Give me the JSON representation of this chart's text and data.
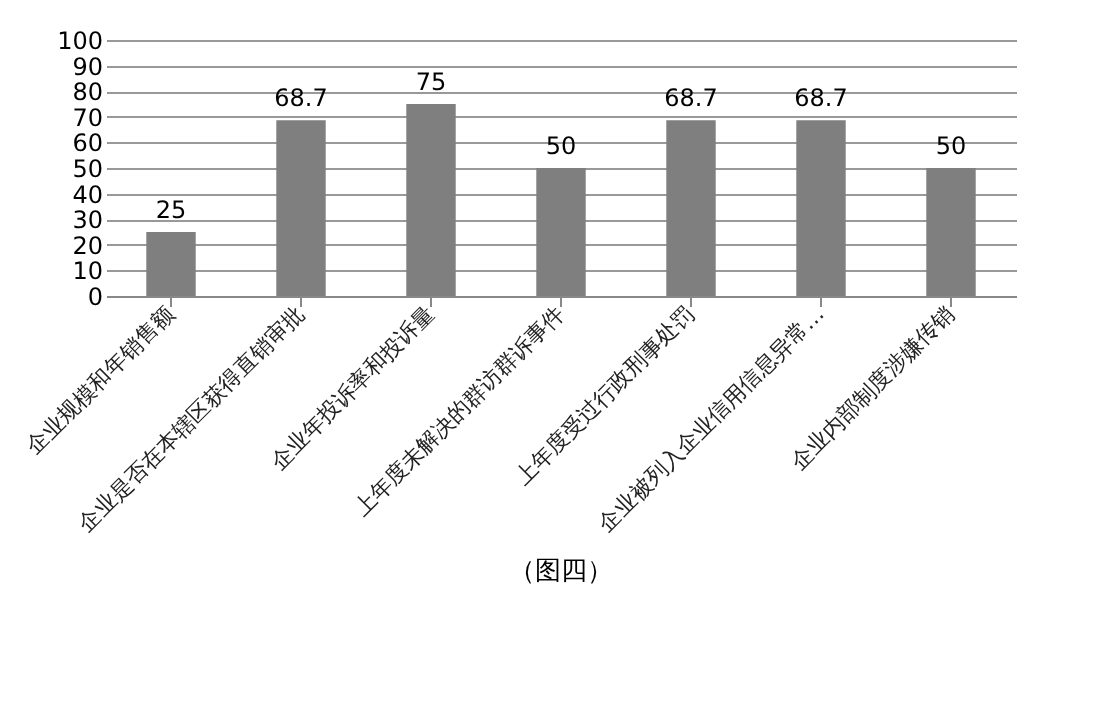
{
  "chart_data": {
    "type": "bar",
    "categories": [
      "企业规模和年销售额",
      "企业是否在本辖区获得直销审批",
      "企业年投诉率和投诉量",
      "上年度未解决的群访群诉事件",
      "上年度受过行政刑事处罚",
      "企业被列入企业信用信息异常…",
      "企业内部制度涉嫌传销"
    ],
    "values": [
      25,
      68.7,
      75,
      50,
      68.7,
      68.7,
      50
    ],
    "color": "#7f7f7f",
    "ylim": [
      0,
      100
    ],
    "yticks": [
      0,
      10,
      20,
      30,
      40,
      50,
      60,
      70,
      80,
      90,
      100
    ],
    "grid": "y",
    "data_labels": true,
    "annotations": [
      "（图四）"
    ]
  }
}
